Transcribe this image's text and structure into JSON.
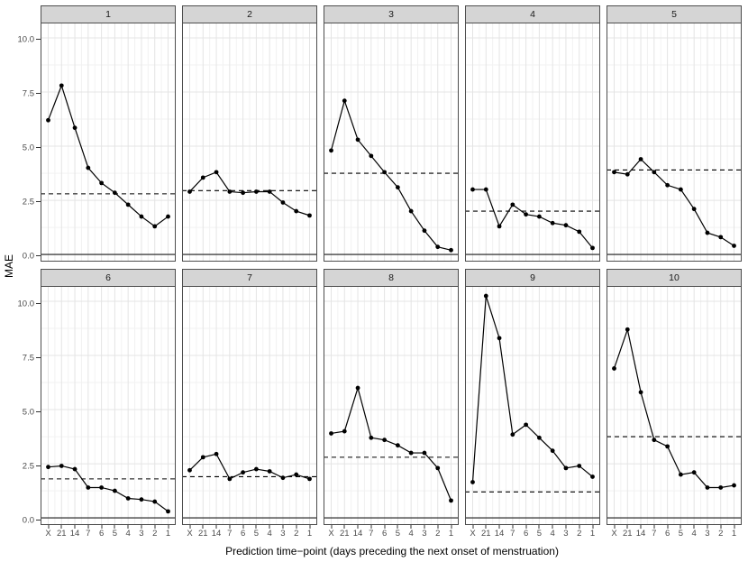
{
  "figure": {
    "ylabel": "MAE",
    "xlabel": "Prediction time−point (days preceding the next onset of menstruation)"
  },
  "colors": {
    "series": "#000000",
    "zero_line": "#1a1a1a",
    "dashed_reference": "#000000",
    "strip_bg": "#d5d5d5",
    "panel_border": "#4d4d4d",
    "grid_major": "#e4e4e4",
    "grid_minor": "#f2f2f2",
    "tick_text": "#4a4a4a"
  },
  "chart_data": {
    "type": "line",
    "faceted": true,
    "facet_layout": {
      "rows": 2,
      "cols": 5
    },
    "title": "",
    "xlabel": "Prediction time−point (days preceding the next onset of menstruation)",
    "ylabel": "MAE",
    "categories": [
      "X",
      "21",
      "14",
      "7",
      "6",
      "5",
      "4",
      "3",
      "2",
      "1"
    ],
    "yticks": {
      "values": [
        0,
        2.5,
        5,
        7.5,
        10
      ],
      "labels": [
        "0.0",
        "2.5",
        "5.0",
        "7.5",
        "10.0"
      ]
    },
    "ylim": [
      -0.33,
      10.71
    ],
    "grid": true,
    "legend": "none",
    "reference_lines": "each panel has a solid line at y=0 and a horizontal dashed baseline at 'dashed'",
    "panels": [
      {
        "label": "1",
        "dashed": 2.8,
        "values": [
          6.2,
          7.8,
          5.85,
          4.0,
          3.3,
          2.85,
          2.3,
          1.75,
          1.3,
          1.75
        ]
      },
      {
        "label": "2",
        "dashed": 2.95,
        "values": [
          2.9,
          3.55,
          3.8,
          2.9,
          2.85,
          2.9,
          2.9,
          2.4,
          2.0,
          1.8
        ]
      },
      {
        "label": "3",
        "dashed": 3.75,
        "values": [
          4.8,
          7.1,
          5.3,
          4.55,
          3.8,
          3.1,
          2.0,
          1.1,
          0.35,
          0.2
        ]
      },
      {
        "label": "4",
        "dashed": 2.0,
        "values": [
          3.0,
          3.0,
          1.3,
          2.3,
          1.85,
          1.75,
          1.45,
          1.35,
          1.05,
          0.3
        ]
      },
      {
        "label": "5",
        "dashed": 3.9,
        "values": [
          3.8,
          3.7,
          4.4,
          3.8,
          3.2,
          3.0,
          2.1,
          1.0,
          0.8,
          0.4
        ]
      },
      {
        "label": "6",
        "dashed": 1.8,
        "values": [
          2.35,
          2.4,
          2.25,
          1.4,
          1.4,
          1.25,
          0.9,
          0.85,
          0.75,
          0.3
        ]
      },
      {
        "label": "7",
        "dashed": 1.9,
        "values": [
          2.2,
          2.8,
          2.95,
          1.8,
          2.1,
          2.25,
          2.15,
          1.85,
          2.0,
          1.8
        ]
      },
      {
        "label": "8",
        "dashed": 2.8,
        "values": [
          3.9,
          4.0,
          6.0,
          3.7,
          3.6,
          3.35,
          3.0,
          3.0,
          2.3,
          0.8
        ]
      },
      {
        "label": "9",
        "dashed": 1.2,
        "values": [
          1.65,
          10.25,
          8.3,
          3.85,
          4.3,
          3.7,
          3.1,
          2.3,
          2.4,
          1.9
        ]
      },
      {
        "label": "10",
        "dashed": 3.75,
        "values": [
          6.9,
          8.7,
          5.8,
          3.6,
          3.3,
          2.0,
          2.1,
          1.4,
          1.4,
          1.5
        ]
      }
    ]
  }
}
